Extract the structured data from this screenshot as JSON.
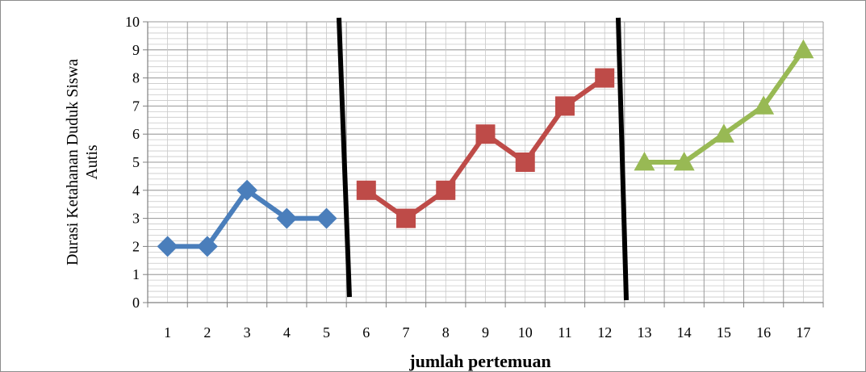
{
  "chart_data": {
    "type": "line",
    "title": "",
    "xlabel": "jumlah pertemuan",
    "ylabel_lines": [
      "Durasi Ketahanan Duduk Siswa",
      "Autis"
    ],
    "categories": [
      "1",
      "2",
      "3",
      "4",
      "5",
      "6",
      "7",
      "8",
      "9",
      "10",
      "11",
      "12",
      "13",
      "14",
      "15",
      "16",
      "17"
    ],
    "y_ticks": [
      "0",
      "1",
      "2",
      "3",
      "4",
      "5",
      "6",
      "7",
      "8",
      "9",
      "10"
    ],
    "ylim": [
      0,
      10
    ],
    "grid": true,
    "legend": "none",
    "phase_dividers_after_category": [
      5,
      12
    ],
    "series": [
      {
        "color": "#4a7ebb",
        "marker": "diamond",
        "x": [
          1,
          2,
          3,
          4,
          5
        ],
        "values": [
          2,
          2,
          4,
          3,
          3
        ]
      },
      {
        "color": "#be4b48",
        "marker": "square",
        "x": [
          6,
          7,
          8,
          9,
          10,
          11,
          12
        ],
        "values": [
          4,
          3,
          4,
          6,
          5,
          7,
          8
        ]
      },
      {
        "color": "#98b954",
        "marker": "triangle",
        "x": [
          13,
          14,
          15,
          16,
          17
        ],
        "values": [
          5,
          5,
          6,
          7,
          9
        ]
      }
    ]
  }
}
